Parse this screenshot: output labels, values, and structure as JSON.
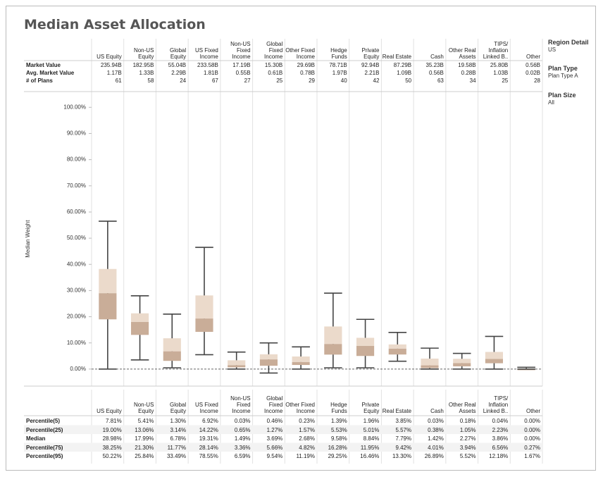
{
  "chart_data": {
    "type": "box",
    "title": "Median Asset Allocation",
    "ylabel": "Median Weight",
    "categories": [
      "US Equity",
      "Non-US Equity",
      "Global Equity",
      "US Fixed Income",
      "Non-US Fixed Income",
      "Global Fixed Income",
      "Other Fixed Income",
      "Hedge Funds",
      "Private Equity",
      "Real Estate",
      "Cash",
      "Other Real Assets",
      "TIPS/ Inflation Linked B..",
      "Other"
    ],
    "ylim": [
      -6.5,
      106
    ],
    "yticks": [
      {
        "value": 0,
        "label": "0.00%"
      },
      {
        "value": 10,
        "label": "10.00%"
      },
      {
        "value": 20,
        "label": "20.00%"
      },
      {
        "value": 30,
        "label": "30.00%"
      },
      {
        "value": 40,
        "label": "40.00%"
      },
      {
        "value": 50,
        "label": "50.00%"
      },
      {
        "value": 60,
        "label": "60.00%"
      },
      {
        "value": 70,
        "label": "70.00%"
      },
      {
        "value": 80,
        "label": "80.00%"
      },
      {
        "value": 90,
        "label": "90.00%"
      },
      {
        "value": 100,
        "label": "100.00%"
      }
    ],
    "box_colors": {
      "lower": "#c9ad98",
      "upper": "#ebdacb",
      "whisker": "#444444"
    },
    "whiskers": {
      "low": [
        0,
        3.5,
        0.5,
        5.5,
        0,
        -1.5,
        0,
        0.5,
        0.5,
        3,
        0,
        0,
        0,
        0
      ],
      "high": [
        56.5,
        28,
        21,
        46.5,
        6.5,
        10,
        8.5,
        29,
        19,
        14,
        8,
        6,
        12.5,
        0.7
      ]
    },
    "stats": [
      {
        "name": "Percentile(5)",
        "values": [
          7.81,
          5.41,
          1.3,
          6.92,
          0.03,
          0.46,
          0.23,
          1.39,
          1.96,
          3.85,
          0.03,
          0.18,
          0.04,
          0.0
        ],
        "value_labels": [
          "7.81%",
          "5.41%",
          "1.30%",
          "6.92%",
          "0.03%",
          "0.46%",
          "0.23%",
          "1.39%",
          "1.96%",
          "3.85%",
          "0.03%",
          "0.18%",
          "0.04%",
          "0.00%"
        ]
      },
      {
        "name": "Percentile(25)",
        "values": [
          19.0,
          13.06,
          3.14,
          14.22,
          0.65,
          1.27,
          1.57,
          5.53,
          5.01,
          5.57,
          0.38,
          1.05,
          2.23,
          0.0
        ],
        "value_labels": [
          "19.00%",
          "13.06%",
          "3.14%",
          "14.22%",
          "0.65%",
          "1.27%",
          "1.57%",
          "5.53%",
          "5.01%",
          "5.57%",
          "0.38%",
          "1.05%",
          "2.23%",
          "0.00%"
        ]
      },
      {
        "name": "Median",
        "values": [
          28.98,
          17.99,
          6.78,
          19.31,
          1.49,
          3.69,
          2.68,
          9.58,
          8.84,
          7.79,
          1.42,
          2.27,
          3.86,
          0.0
        ],
        "value_labels": [
          "28.98%",
          "17.99%",
          "6.78%",
          "19.31%",
          "1.49%",
          "3.69%",
          "2.68%",
          "9.58%",
          "8.84%",
          "7.79%",
          "1.42%",
          "2.27%",
          "3.86%",
          "0.00%"
        ]
      },
      {
        "name": "Percentile(75)",
        "values": [
          38.25,
          21.3,
          11.77,
          28.14,
          3.36,
          5.66,
          4.82,
          16.28,
          11.95,
          9.42,
          4.01,
          3.94,
          6.56,
          0.27
        ],
        "value_labels": [
          "38.25%",
          "21.30%",
          "11.77%",
          "28.14%",
          "3.36%",
          "5.66%",
          "4.82%",
          "16.28%",
          "11.95%",
          "9.42%",
          "4.01%",
          "3.94%",
          "6.56%",
          "0.27%"
        ]
      },
      {
        "name": "Percentile(95)",
        "values": [
          50.22,
          25.84,
          33.49,
          78.55,
          6.59,
          9.54,
          11.19,
          29.25,
          16.46,
          13.3,
          26.89,
          5.52,
          12.18,
          1.67
        ],
        "value_labels": [
          "50.22%",
          "25.84%",
          "33.49%",
          "78.55%",
          "6.59%",
          "9.54%",
          "11.19%",
          "29.25%",
          "16.46%",
          "13.30%",
          "26.89%",
          "5.52%",
          "12.18%",
          "1.67%"
        ]
      }
    ]
  },
  "summary_table": {
    "rows": [
      {
        "label": "Market Value",
        "values": [
          "235.94B",
          "182.95B",
          "55.04B",
          "233.58B",
          "17.19B",
          "15.30B",
          "29.69B",
          "78.71B",
          "92.94B",
          "87.29B",
          "35.23B",
          "19.58B",
          "25.80B",
          "0.56B"
        ]
      },
      {
        "label": "Avg. Market Value",
        "values": [
          "1.17B",
          "1.33B",
          "2.29B",
          "1.81B",
          "0.55B",
          "0.61B",
          "0.78B",
          "1.97B",
          "2.21B",
          "1.09B",
          "0.56B",
          "0.28B",
          "1.03B",
          "0.02B"
        ]
      },
      {
        "label": "# of Plans",
        "values": [
          61,
          58,
          24,
          67,
          27,
          25,
          29,
          40,
          42,
          50,
          63,
          34,
          25,
          28
        ]
      }
    ]
  },
  "filters": [
    {
      "title": "Region Detail",
      "value": "US"
    },
    {
      "title": "Plan Type",
      "value": "Plan Type A"
    },
    {
      "title": "Plan Size",
      "value": "All"
    }
  ]
}
